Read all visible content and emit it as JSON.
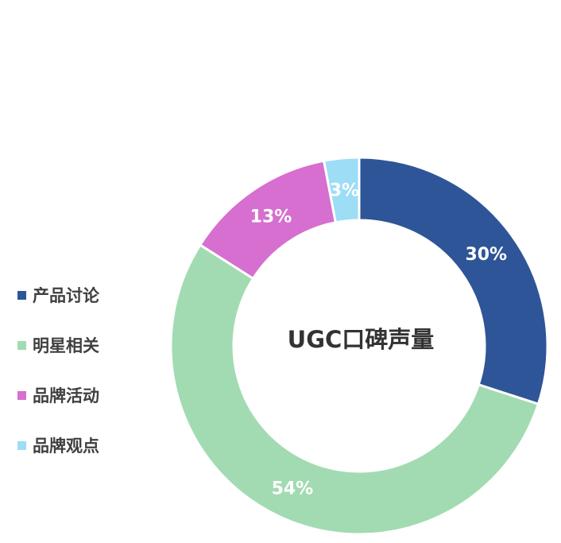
{
  "chart_data": {
    "type": "pie",
    "donut": true,
    "title": "UGC口碑声量",
    "categories": [
      "产品讨论",
      "明星相关",
      "品牌活动",
      "品牌观点"
    ],
    "values": [
      30,
      54,
      13,
      3
    ],
    "labels": [
      "30%",
      "54%",
      "13%",
      "3%"
    ],
    "colors": [
      "#2E5597",
      "#A2DBB2",
      "#D66FCF",
      "#9DDDF5"
    ],
    "legend_position": "left",
    "slice_order": "clockwise from top",
    "slice_sequence": [
      0,
      1,
      2,
      3
    ]
  }
}
